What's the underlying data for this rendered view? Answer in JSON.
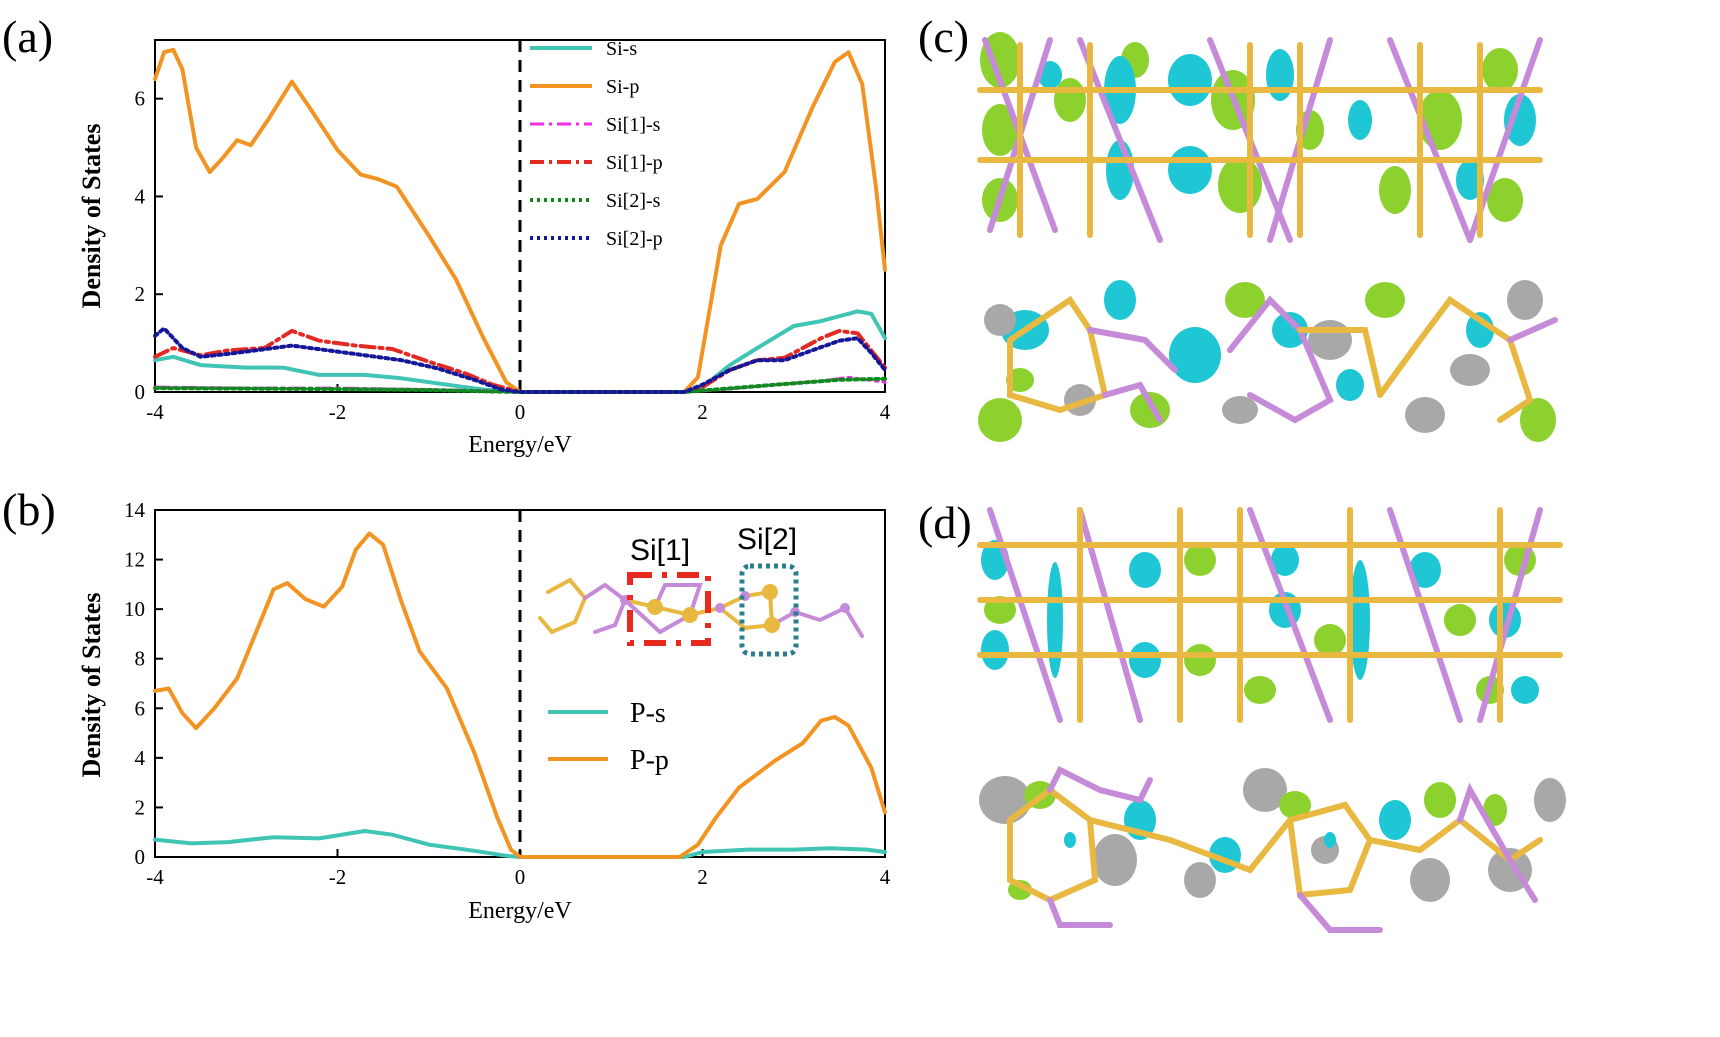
{
  "figure": {
    "panel_labels": {
      "a": "(a)",
      "b": "(b)",
      "c": "(c)",
      "d": "(d)"
    },
    "inset_labels": [
      "Si[1]",
      "Si[2]"
    ]
  },
  "chart_data": [
    {
      "id": "a",
      "type": "line",
      "xlabel": "Energy/eV",
      "ylabel": "Density of States",
      "xlim": [
        -4,
        4
      ],
      "ylim": [
        0,
        7.2
      ],
      "xticks": [
        -4,
        -2,
        0,
        2,
        4
      ],
      "yticks": [
        0,
        2,
        4,
        6
      ],
      "fermi_level": 0,
      "legend_position": "top-right",
      "series": [
        {
          "name": "Si-s",
          "color": "#40c4b4",
          "dash": "solid",
          "width": 4,
          "points": [
            [
              -4,
              0.65
            ],
            [
              -3.8,
              0.72
            ],
            [
              -3.5,
              0.55
            ],
            [
              -3.0,
              0.5
            ],
            [
              -2.6,
              0.5
            ],
            [
              -2.2,
              0.35
            ],
            [
              -1.7,
              0.35
            ],
            [
              -1.3,
              0.28
            ],
            [
              -0.8,
              0.15
            ],
            [
              -0.4,
              0.05
            ],
            [
              0,
              0
            ],
            [
              1.8,
              0
            ],
            [
              2.0,
              0.1
            ],
            [
              2.3,
              0.55
            ],
            [
              2.6,
              0.9
            ],
            [
              3.0,
              1.35
            ],
            [
              3.3,
              1.45
            ],
            [
              3.7,
              1.65
            ],
            [
              3.85,
              1.6
            ],
            [
              4,
              1.1
            ]
          ]
        },
        {
          "name": "Si-p",
          "color": "#f39322",
          "dash": "solid",
          "width": 4,
          "points": [
            [
              -4,
              6.4
            ],
            [
              -3.9,
              6.95
            ],
            [
              -3.8,
              7.0
            ],
            [
              -3.7,
              6.6
            ],
            [
              -3.55,
              5.0
            ],
            [
              -3.4,
              4.5
            ],
            [
              -3.25,
              4.8
            ],
            [
              -3.1,
              5.15
            ],
            [
              -2.95,
              5.05
            ],
            [
              -2.75,
              5.6
            ],
            [
              -2.5,
              6.35
            ],
            [
              -2.3,
              5.8
            ],
            [
              -2.0,
              4.95
            ],
            [
              -1.75,
              4.45
            ],
            [
              -1.55,
              4.35
            ],
            [
              -1.35,
              4.2
            ],
            [
              -1.0,
              3.2
            ],
            [
              -0.7,
              2.3
            ],
            [
              -0.4,
              1.1
            ],
            [
              -0.15,
              0.2
            ],
            [
              0,
              0
            ],
            [
              1.8,
              0
            ],
            [
              1.95,
              0.3
            ],
            [
              2.2,
              3.0
            ],
            [
              2.4,
              3.85
            ],
            [
              2.6,
              3.95
            ],
            [
              2.9,
              4.5
            ],
            [
              3.2,
              5.8
            ],
            [
              3.45,
              6.75
            ],
            [
              3.6,
              6.95
            ],
            [
              3.75,
              6.3
            ],
            [
              3.9,
              4.2
            ],
            [
              4,
              2.5
            ]
          ]
        },
        {
          "name": "Si[1]-s",
          "color": "#ee2ee8",
          "dash": "14,5,3,5",
          "width": 3,
          "points": [
            [
              -4,
              0.1
            ],
            [
              -3.0,
              0.08
            ],
            [
              -2.0,
              0.08
            ],
            [
              -1.0,
              0.05
            ],
            [
              -0.3,
              0.02
            ],
            [
              0,
              0
            ],
            [
              1.8,
              0
            ],
            [
              2.2,
              0.05
            ],
            [
              2.8,
              0.15
            ],
            [
              3.3,
              0.22
            ],
            [
              3.6,
              0.3
            ],
            [
              3.8,
              0.25
            ],
            [
              4,
              0.2
            ]
          ]
        },
        {
          "name": "Si[1]-p",
          "color": "#e32a22",
          "dash": "14,5,3,5",
          "width": 4,
          "points": [
            [
              -4,
              0.72
            ],
            [
              -3.8,
              0.9
            ],
            [
              -3.5,
              0.75
            ],
            [
              -3.2,
              0.85
            ],
            [
              -2.8,
              0.9
            ],
            [
              -2.5,
              1.25
            ],
            [
              -2.2,
              1.05
            ],
            [
              -1.8,
              0.95
            ],
            [
              -1.4,
              0.88
            ],
            [
              -1.0,
              0.62
            ],
            [
              -0.6,
              0.38
            ],
            [
              -0.3,
              0.15
            ],
            [
              0,
              0
            ],
            [
              1.8,
              0
            ],
            [
              2.0,
              0.1
            ],
            [
              2.3,
              0.45
            ],
            [
              2.6,
              0.65
            ],
            [
              2.9,
              0.7
            ],
            [
              3.3,
              1.1
            ],
            [
              3.5,
              1.25
            ],
            [
              3.7,
              1.2
            ],
            [
              4,
              0.5
            ]
          ]
        },
        {
          "name": "Si[2]-s",
          "color": "#0e8a1e",
          "dash": "3,4",
          "width": 4,
          "points": [
            [
              -4,
              0.08
            ],
            [
              -3.0,
              0.07
            ],
            [
              -2.0,
              0.06
            ],
            [
              -1.0,
              0.04
            ],
            [
              -0.3,
              0.01
            ],
            [
              0,
              0
            ],
            [
              1.8,
              0
            ],
            [
              2.2,
              0.06
            ],
            [
              2.8,
              0.15
            ],
            [
              3.5,
              0.25
            ],
            [
              4,
              0.27
            ]
          ]
        },
        {
          "name": "Si[2]-p",
          "color": "#14179a",
          "dash": "3,4",
          "width": 4,
          "points": [
            [
              -4,
              1.15
            ],
            [
              -3.9,
              1.3
            ],
            [
              -3.7,
              0.9
            ],
            [
              -3.5,
              0.72
            ],
            [
              -3.2,
              0.78
            ],
            [
              -2.9,
              0.85
            ],
            [
              -2.5,
              0.95
            ],
            [
              -2.1,
              0.85
            ],
            [
              -1.7,
              0.75
            ],
            [
              -1.3,
              0.65
            ],
            [
              -0.9,
              0.48
            ],
            [
              -0.5,
              0.25
            ],
            [
              -0.2,
              0.05
            ],
            [
              0,
              0
            ],
            [
              1.8,
              0
            ],
            [
              2.0,
              0.15
            ],
            [
              2.3,
              0.45
            ],
            [
              2.6,
              0.65
            ],
            [
              2.9,
              0.65
            ],
            [
              3.2,
              0.85
            ],
            [
              3.5,
              1.05
            ],
            [
              3.7,
              1.1
            ],
            [
              3.85,
              0.8
            ],
            [
              4,
              0.45
            ]
          ]
        }
      ]
    },
    {
      "id": "b",
      "type": "line",
      "xlabel": "Energy/eV",
      "ylabel": "Density of States",
      "xlim": [
        -4,
        4
      ],
      "ylim": [
        0,
        14
      ],
      "xticks": [
        -4,
        -2,
        0,
        2,
        4
      ],
      "yticks": [
        0,
        2,
        4,
        6,
        8,
        10,
        12,
        14
      ],
      "fermi_level": 0,
      "legend_position": "bottom-right",
      "series": [
        {
          "name": "P-s",
          "color": "#40c4b4",
          "dash": "solid",
          "width": 4,
          "points": [
            [
              -4,
              0.7
            ],
            [
              -3.6,
              0.55
            ],
            [
              -3.2,
              0.6
            ],
            [
              -2.7,
              0.8
            ],
            [
              -2.2,
              0.75
            ],
            [
              -1.7,
              1.05
            ],
            [
              -1.4,
              0.9
            ],
            [
              -1.0,
              0.5
            ],
            [
              -0.5,
              0.25
            ],
            [
              -0.15,
              0.05
            ],
            [
              0,
              0
            ],
            [
              1.8,
              0
            ],
            [
              2.0,
              0.2
            ],
            [
              2.5,
              0.3
            ],
            [
              3.0,
              0.3
            ],
            [
              3.4,
              0.35
            ],
            [
              3.8,
              0.3
            ],
            [
              4,
              0.2
            ]
          ]
        },
        {
          "name": "P-p",
          "color": "#f39322",
          "dash": "solid",
          "width": 4,
          "points": [
            [
              -4,
              6.7
            ],
            [
              -3.85,
              6.8
            ],
            [
              -3.7,
              5.8
            ],
            [
              -3.55,
              5.2
            ],
            [
              -3.35,
              6.0
            ],
            [
              -3.1,
              7.2
            ],
            [
              -2.9,
              9.0
            ],
            [
              -2.7,
              10.8
            ],
            [
              -2.55,
              11.05
            ],
            [
              -2.35,
              10.4
            ],
            [
              -2.15,
              10.1
            ],
            [
              -1.95,
              10.9
            ],
            [
              -1.8,
              12.4
            ],
            [
              -1.65,
              13.05
            ],
            [
              -1.5,
              12.6
            ],
            [
              -1.3,
              10.3
            ],
            [
              -1.1,
              8.3
            ],
            [
              -0.8,
              6.8
            ],
            [
              -0.5,
              4.2
            ],
            [
              -0.25,
              1.6
            ],
            [
              -0.1,
              0.3
            ],
            [
              0,
              0
            ],
            [
              1.75,
              0
            ],
            [
              1.95,
              0.5
            ],
            [
              2.15,
              1.6
            ],
            [
              2.4,
              2.8
            ],
            [
              2.8,
              3.9
            ],
            [
              3.1,
              4.6
            ],
            [
              3.3,
              5.5
            ],
            [
              3.45,
              5.65
            ],
            [
              3.6,
              5.3
            ],
            [
              3.85,
              3.6
            ],
            [
              4,
              1.8
            ]
          ]
        }
      ]
    }
  ]
}
